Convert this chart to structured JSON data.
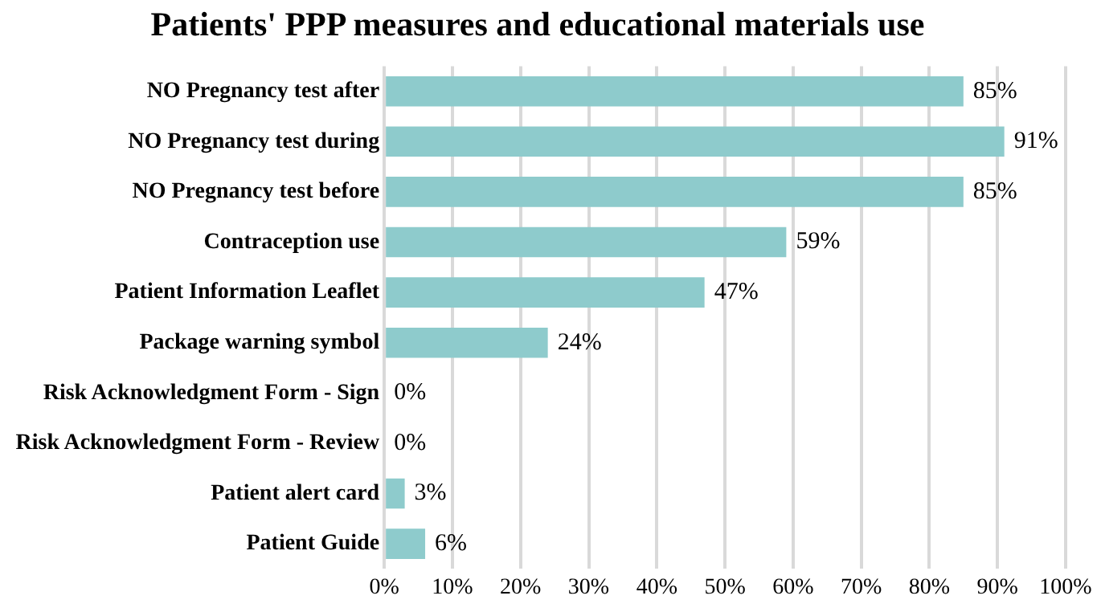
{
  "chart_data": {
    "type": "bar",
    "orientation": "horizontal",
    "title": "Patients' PPP measures and educational materials use",
    "categories": [
      "NO Pregnancy test after",
      "NO Pregnancy test during",
      "NO Pregnancy test before",
      "Contraception use",
      "Patient Information Leaflet",
      "Package warning symbol",
      "Risk Acknowledgment Form - Sign",
      "Risk Acknowledgment Form - Review",
      "Patient alert card",
      "Patient Guide"
    ],
    "values": [
      85,
      91,
      85,
      59,
      47,
      24,
      0,
      0,
      3,
      6
    ],
    "value_labels": [
      "85%",
      "91%",
      "85%",
      "59%",
      "47%",
      "24%",
      "0%",
      "0%",
      "3%",
      "6%"
    ],
    "color": "#8ecbcc",
    "xlim": [
      0,
      100
    ],
    "xticks": [
      {
        "value": 0,
        "label": "0%"
      },
      {
        "value": 10,
        "label": "10%"
      },
      {
        "value": 20,
        "label": "20%"
      },
      {
        "value": 30,
        "label": "30%"
      },
      {
        "value": 40,
        "label": "40%"
      },
      {
        "value": 50,
        "label": "50%"
      },
      {
        "value": 60,
        "label": "60%"
      },
      {
        "value": 70,
        "label": "70%"
      },
      {
        "value": 80,
        "label": "80%"
      },
      {
        "value": 90,
        "label": "90%"
      },
      {
        "value": 100,
        "label": "100%"
      }
    ],
    "grid": "x",
    "legend": false
  }
}
